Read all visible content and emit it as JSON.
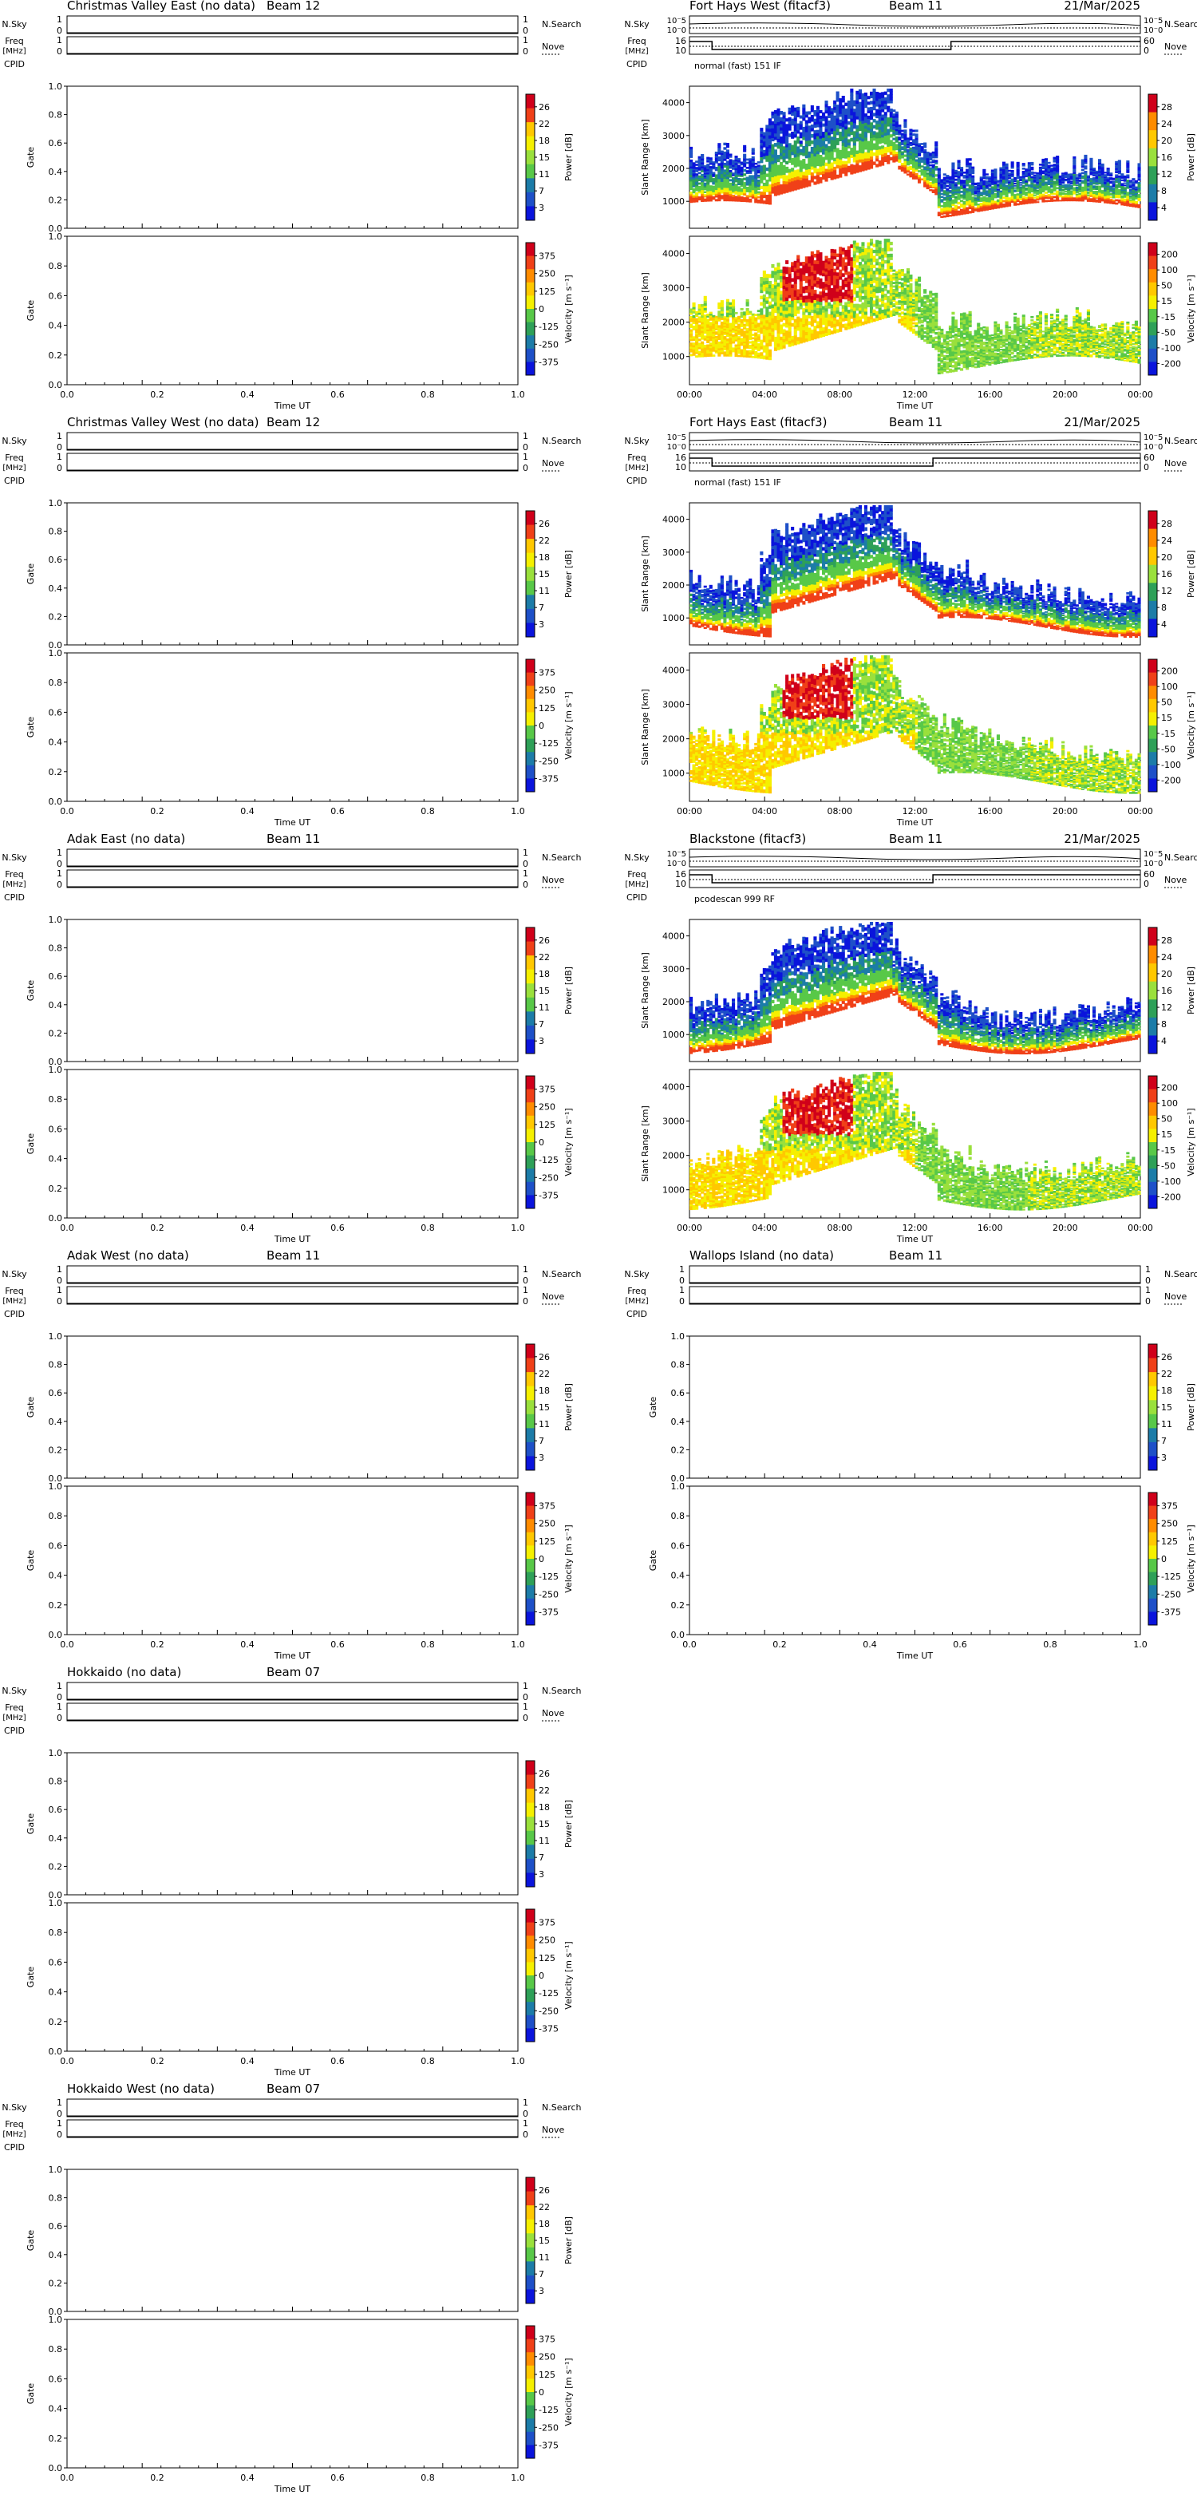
{
  "labels": {
    "nsky": "N.Sky",
    "nsearch": "N.Search",
    "freq_top": "Freq",
    "freq_unit": "[MHz]",
    "nove": "Nove",
    "cpid": "CPID",
    "gate": "Gate",
    "slant_range": "Slant Range [km]",
    "time_ut": "Time UT",
    "power": "Power [dB]",
    "velocity": "Velocity [m s⁻¹]",
    "ticks_frac": [
      "0.0",
      "0.2",
      "0.4",
      "0.6",
      "0.8",
      "1.0"
    ],
    "ticks_time": [
      "00:00",
      "04:00",
      "08:00",
      "12:00",
      "16:00",
      "20:00",
      "00:00"
    ],
    "ticks_range": [
      "1000",
      "2000",
      "3000",
      "4000"
    ],
    "ticks_1_0": [
      "1",
      "0"
    ],
    "ticks_nsky_left": [
      "10⁻5",
      "10⁻0"
    ],
    "ticks_nsky_right": [
      "10⁻5",
      "10⁻0"
    ],
    "ticks_freq_left": [
      "16",
      "10"
    ],
    "ticks_freq_right": [
      "60",
      "0"
    ],
    "nodata_power_ticks": [
      "26",
      "22",
      "18",
      "15",
      "11",
      "7",
      "3"
    ],
    "nodata_vel_ticks": [
      "375",
      "250",
      "125",
      "0",
      "-125",
      "-250",
      "-375"
    ],
    "data_power_ticks": [
      "28",
      "24",
      "20",
      "16",
      "12",
      "8",
      "4"
    ],
    "data_vel_ticks": [
      "200",
      "100",
      "50",
      "15",
      "-15",
      "-50",
      "-100",
      "-200"
    ]
  },
  "colors": {
    "scale": [
      "#d0001a",
      "#f04018",
      "#ff8c00",
      "#ffc800",
      "#f5f000",
      "#9ae03c",
      "#58c848",
      "#2ea058",
      "#1c7ca8",
      "#1e50c8",
      "#0a14dc"
    ]
  },
  "panels": [
    {
      "id": "cve",
      "title": "Christmas Valley East (no data)",
      "beam": "Beam 12",
      "date": "",
      "has_data": false,
      "mode": "",
      "right_label": "1",
      "right_label2": "0"
    },
    {
      "id": "fhw",
      "title": "Fort Hays West (fitacf3)",
      "beam": "Beam 11",
      "date": "21/Mar/2025",
      "has_data": true,
      "mode": "normal (fast) 151 IF"
    },
    {
      "id": "cvw",
      "title": "Christmas Valley West (no data)",
      "beam": "Beam 12",
      "date": "",
      "has_data": false,
      "mode": ""
    },
    {
      "id": "fhe",
      "title": "Fort Hays East (fitacf3)",
      "beam": "Beam 11",
      "date": "21/Mar/2025",
      "has_data": true,
      "mode": "normal (fast) 151 IF"
    },
    {
      "id": "ade",
      "title": "Adak East (no data)",
      "beam": "Beam 11",
      "date": "",
      "has_data": false,
      "mode": ""
    },
    {
      "id": "bks",
      "title": "Blackstone (fitacf3)",
      "beam": "Beam 11",
      "date": "21/Mar/2025",
      "has_data": true,
      "mode": "pcodescan 999 RF"
    },
    {
      "id": "adw",
      "title": "Adak West (no data)",
      "beam": "Beam 11",
      "date": "",
      "has_data": false,
      "mode": ""
    },
    {
      "id": "wal",
      "title": "Wallops Island (no data)",
      "beam": "Beam 11",
      "date": "",
      "has_data": false,
      "mode": ""
    },
    {
      "id": "hok",
      "title": "Hokkaido (no data)",
      "beam": "Beam 07",
      "date": "",
      "has_data": false,
      "mode": ""
    },
    {
      "id": "hkw",
      "title": "Hokkaido West (no data)",
      "beam": "Beam 07",
      "date": "",
      "has_data": false,
      "mode": ""
    }
  ],
  "chart_data": [
    {
      "type": "heatmap",
      "panel": "fhw",
      "quantity": "Power [dB]",
      "x_range": [
        "00:00",
        "00:00"
      ],
      "ylabel": "Slant Range [km]",
      "ylim": [
        180,
        4500
      ],
      "colorbar": [
        4,
        28
      ]
    },
    {
      "type": "heatmap",
      "panel": "fhw",
      "quantity": "Velocity [m s⁻¹]",
      "x_range": [
        "00:00",
        "00:00"
      ],
      "ylabel": "Slant Range [km]",
      "ylim": [
        180,
        4500
      ],
      "colorbar": [
        -200,
        200
      ]
    },
    {
      "type": "heatmap",
      "panel": "fhe",
      "quantity": "Power [dB]",
      "x_range": [
        "00:00",
        "00:00"
      ],
      "ylabel": "Slant Range [km]",
      "ylim": [
        180,
        4500
      ],
      "colorbar": [
        4,
        28
      ]
    },
    {
      "type": "heatmap",
      "panel": "fhe",
      "quantity": "Velocity [m s⁻¹]",
      "x_range": [
        "00:00",
        "00:00"
      ],
      "ylabel": "Slant Range [km]",
      "ylim": [
        180,
        4500
      ],
      "colorbar": [
        -200,
        200
      ]
    },
    {
      "type": "heatmap",
      "panel": "bks",
      "quantity": "Power [dB]",
      "x_range": [
        "00:00",
        "00:00"
      ],
      "ylabel": "Slant Range [km]",
      "ylim": [
        180,
        4500
      ],
      "colorbar": [
        4,
        28
      ]
    },
    {
      "type": "heatmap",
      "panel": "bks",
      "quantity": "Velocity [m s⁻¹]",
      "x_range": [
        "00:00",
        "00:00"
      ],
      "ylabel": "Slant Range [km]",
      "ylim": [
        180,
        4500
      ],
      "colorbar": [
        -200,
        200
      ]
    }
  ]
}
